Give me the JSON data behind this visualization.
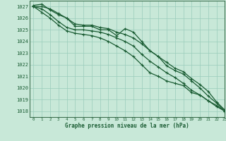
{
  "title": "Graphe pression niveau de la mer (hPa)",
  "bg_color": "#c8e8d8",
  "grid_color": "#99ccbb",
  "line_color": "#1a5c33",
  "spine_color": "#336644",
  "xlim": [
    -0.5,
    23
  ],
  "ylim": [
    1017.5,
    1027.5
  ],
  "xticks": [
    0,
    1,
    2,
    3,
    4,
    5,
    6,
    7,
    8,
    9,
    10,
    11,
    12,
    13,
    14,
    15,
    16,
    17,
    18,
    19,
    20,
    21,
    22,
    23
  ],
  "yticks": [
    1018,
    1019,
    1020,
    1021,
    1022,
    1023,
    1024,
    1025,
    1026,
    1027
  ],
  "series": [
    [
      1027.1,
      1027.2,
      1026.7,
      1026.3,
      1026.0,
      1025.3,
      1025.3,
      1025.3,
      1025.0,
      1025.0,
      1024.5,
      1025.1,
      1024.8,
      1024.0,
      1023.2,
      1022.7,
      1021.9,
      1021.5,
      1021.2,
      1020.6,
      1020.0,
      1019.3,
      1018.7,
      1018.0
    ],
    [
      1027.0,
      1027.0,
      1026.8,
      1026.4,
      1026.0,
      1025.5,
      1025.4,
      1025.4,
      1025.2,
      1025.1,
      1024.8,
      1024.6,
      1024.3,
      1023.8,
      1023.2,
      1022.7,
      1022.2,
      1021.7,
      1021.4,
      1020.8,
      1020.3,
      1019.7,
      1018.8,
      1018.1
    ],
    [
      1027.0,
      1026.8,
      1026.3,
      1025.7,
      1025.2,
      1025.0,
      1025.0,
      1024.9,
      1024.8,
      1024.6,
      1024.3,
      1024.0,
      1023.6,
      1022.9,
      1022.3,
      1021.8,
      1021.3,
      1020.9,
      1020.4,
      1019.8,
      1019.4,
      1018.9,
      1018.4,
      1018.0
    ],
    [
      1027.0,
      1026.5,
      1026.0,
      1025.4,
      1024.9,
      1024.7,
      1024.6,
      1024.5,
      1024.3,
      1024.0,
      1023.6,
      1023.2,
      1022.7,
      1022.0,
      1021.3,
      1021.0,
      1020.6,
      1020.4,
      1020.2,
      1019.6,
      1019.4,
      1018.9,
      1018.5,
      1018.0
    ]
  ]
}
